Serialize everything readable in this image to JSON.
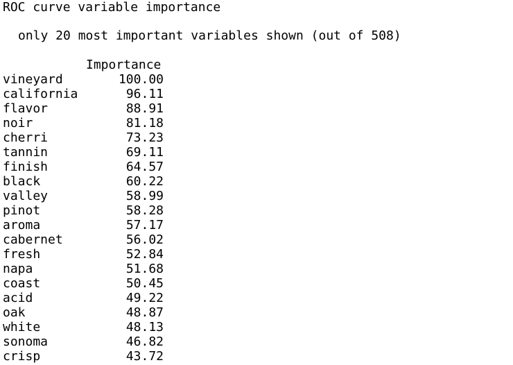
{
  "output": {
    "title": "ROC curve variable importance",
    "subtitle": "only 20 most important variables shown (out of 508)",
    "column_header": "Importance",
    "rows": [
      {
        "name": "vineyard",
        "importance": "100.00"
      },
      {
        "name": "california",
        "importance": "96.11"
      },
      {
        "name": "flavor",
        "importance": "88.91"
      },
      {
        "name": "noir",
        "importance": "81.18"
      },
      {
        "name": "cherri",
        "importance": "73.23"
      },
      {
        "name": "tannin",
        "importance": "69.11"
      },
      {
        "name": "finish",
        "importance": "64.57"
      },
      {
        "name": "black",
        "importance": "60.22"
      },
      {
        "name": "valley",
        "importance": "58.99"
      },
      {
        "name": "pinot",
        "importance": "58.28"
      },
      {
        "name": "aroma",
        "importance": "57.17"
      },
      {
        "name": "cabernet",
        "importance": "56.02"
      },
      {
        "name": "fresh",
        "importance": "52.84"
      },
      {
        "name": "napa",
        "importance": "51.68"
      },
      {
        "name": "coast",
        "importance": "50.45"
      },
      {
        "name": "acid",
        "importance": "49.22"
      },
      {
        "name": "oak",
        "importance": "48.87"
      },
      {
        "name": "white",
        "importance": "48.13"
      },
      {
        "name": "sonoma",
        "importance": "46.82"
      },
      {
        "name": "crisp",
        "importance": "43.72"
      }
    ]
  }
}
